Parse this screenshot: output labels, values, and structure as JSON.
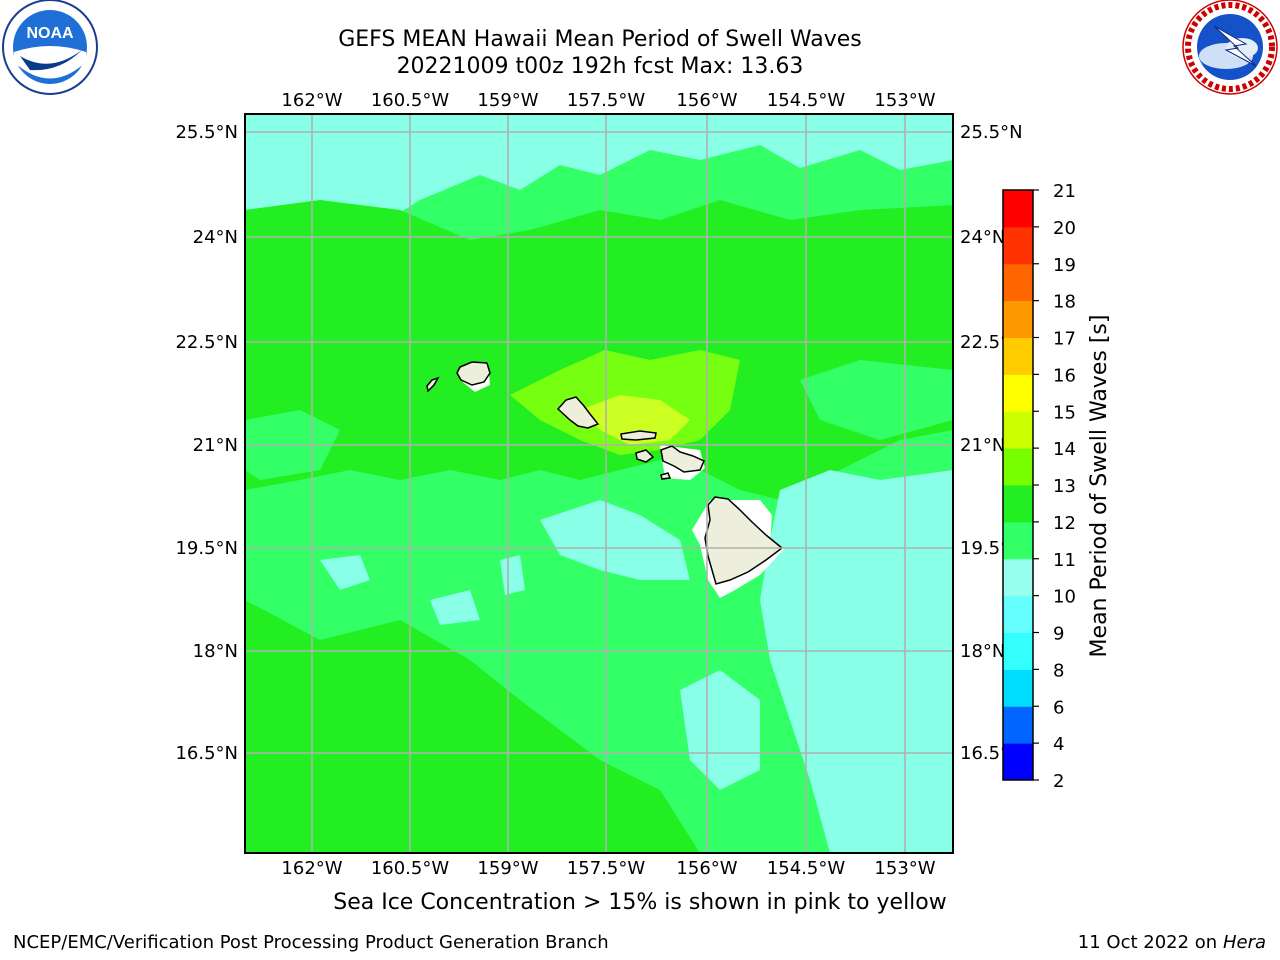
{
  "header": {
    "title_line1": "GEFS MEAN Hawaii Mean Period of Swell Waves",
    "title_line2": "20221009 t00z 192h fcst   Max: 13.63"
  },
  "logos": {
    "left": {
      "name": "NOAA",
      "ring_text": "NATIONAL OCEANIC AND ATMOSPHERIC ADMINISTRATION • U.S. DEPARTMENT OF COMMERCE"
    },
    "right": {
      "name": "NATIONAL WEATHER SERVICE"
    }
  },
  "map": {
    "lon_labels": [
      "162°W",
      "160.5°W",
      "159°W",
      "157.5°W",
      "156°W",
      "154.5°W",
      "153°W"
    ],
    "lat_labels": [
      "25.5°N",
      "24°N",
      "22.5°N",
      "21°N",
      "19.5°N",
      "18°N",
      "16.5°N"
    ],
    "right_lat_labels": [
      "25.5°N",
      "24°N",
      "22.5°N",
      "21°N",
      "19.5°N",
      "18°N",
      "16.5°N"
    ],
    "colors": {
      "class_9_10": "#88ffe6",
      "class_10_11": "#33ff66",
      "class_11_12": "#22ee22",
      "class_12_13": "#77ff11",
      "class_13_14": "#ccff22",
      "land": "#eeeedd",
      "grid": "#b0b0b0"
    }
  },
  "colorbar": {
    "label": "Mean Period of Swell Waves [s]",
    "ticks": [
      "2",
      "4",
      "6",
      "8",
      "9",
      "10",
      "11",
      "12",
      "13",
      "14",
      "15",
      "16",
      "17",
      "18",
      "19",
      "20",
      "21"
    ],
    "colors": [
      "#0000ff",
      "#0066ff",
      "#00ddff",
      "#33ffff",
      "#66ffff",
      "#99ffee",
      "#33ff66",
      "#22ee22",
      "#77ff00",
      "#ccff00",
      "#ffff00",
      "#ffcc00",
      "#ff9900",
      "#ff6600",
      "#ff3300",
      "#ff0000"
    ]
  },
  "subtitle": "Sea Ice Concentration > 15% is shown in pink to yellow",
  "footer": {
    "left": "NCEP/EMC/Verification Post Processing Product Generation Branch",
    "right_prefix": "11 Oct 2022 on ",
    "right_italic": "Hera"
  }
}
